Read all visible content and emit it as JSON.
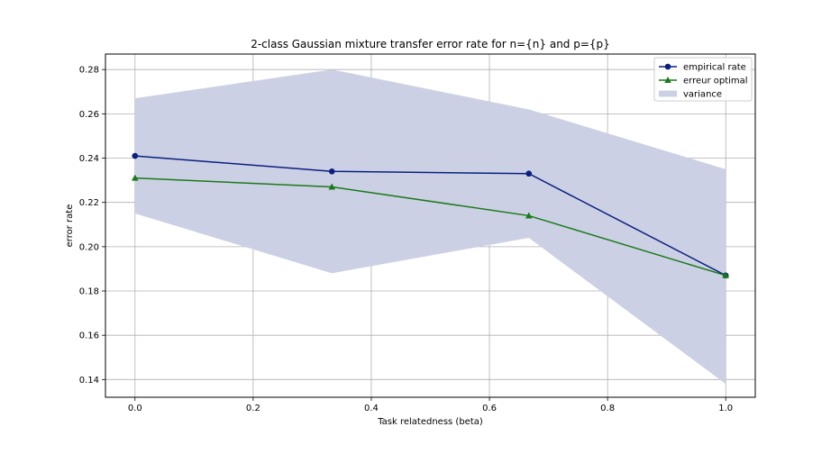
{
  "chart_data": {
    "type": "line",
    "title": "2-class Gaussian mixture transfer error rate for n={n} and p={p}",
    "xlabel": "Task relatedness (beta)",
    "ylabel": "error rate",
    "xlim": [
      -0.05,
      1.05
    ],
    "ylim": [
      0.132,
      0.287
    ],
    "x_ticks": [
      0.0,
      0.2,
      0.4,
      0.6,
      0.8,
      1.0
    ],
    "x_tick_labels": [
      "0.0",
      "0.2",
      "0.4",
      "0.6",
      "0.8",
      "1.0"
    ],
    "y_ticks": [
      0.14,
      0.16,
      0.18,
      0.2,
      0.22,
      0.24,
      0.26,
      0.28
    ],
    "y_tick_labels": [
      "0.14",
      "0.16",
      "0.18",
      "0.20",
      "0.22",
      "0.24",
      "0.26",
      "0.28"
    ],
    "grid": true,
    "legend_position": "top-right",
    "x": [
      0.0,
      0.3333,
      0.6667,
      1.0
    ],
    "series": [
      {
        "name": "empirical rate",
        "values": [
          0.241,
          0.234,
          0.233,
          0.187
        ],
        "color": "#0a1f7f",
        "marker": "circle"
      },
      {
        "name": "erreur optimal",
        "values": [
          0.231,
          0.227,
          0.214,
          0.187
        ],
        "color": "#1a7a1a",
        "marker": "triangle"
      }
    ],
    "band": {
      "name": "variance",
      "upper": [
        0.267,
        0.28,
        0.262,
        0.235
      ],
      "lower": [
        0.215,
        0.188,
        0.204,
        0.138
      ],
      "color": "#ccd0e4"
    }
  }
}
